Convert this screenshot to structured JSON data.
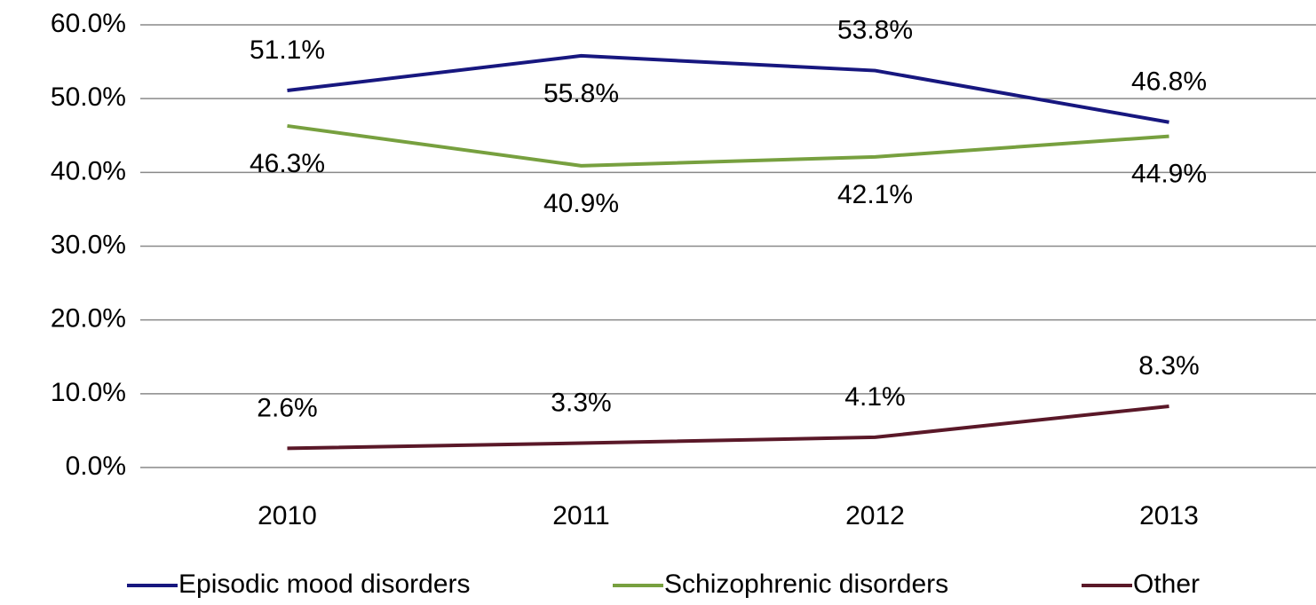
{
  "chart_data": {
    "type": "line",
    "categories": [
      "2010",
      "2011",
      "2012",
      "2013"
    ],
    "series": [
      {
        "name": "Episodic mood disorders",
        "color": "#17177f",
        "values": [
          51.1,
          55.8,
          53.8,
          46.8
        ],
        "value_labels": [
          "51.1%",
          "55.8%",
          "53.8%",
          "46.8%"
        ]
      },
      {
        "name": "Schizophrenic disorders",
        "color": "#77a03f",
        "values": [
          46.3,
          40.9,
          42.1,
          44.9
        ],
        "value_labels": [
          "46.3%",
          "40.9%",
          "42.1%",
          "44.9%"
        ]
      },
      {
        "name": "Other",
        "color": "#5a1828",
        "values": [
          2.6,
          3.3,
          4.1,
          8.3
        ],
        "value_labels": [
          "2.6%",
          "3.3%",
          "4.1%",
          "8.3%"
        ]
      }
    ],
    "ylim": [
      0,
      60
    ],
    "yticks": [
      {
        "value": 0,
        "label": "0.0%"
      },
      {
        "value": 10,
        "label": "10.0%"
      },
      {
        "value": 20,
        "label": "20.0%"
      },
      {
        "value": 30,
        "label": "30.0%"
      },
      {
        "value": 40,
        "label": "40.0%"
      },
      {
        "value": 50,
        "label": "50.0%"
      },
      {
        "value": 60,
        "label": "60.0%"
      }
    ],
    "grid": true,
    "legend": "bottom"
  }
}
